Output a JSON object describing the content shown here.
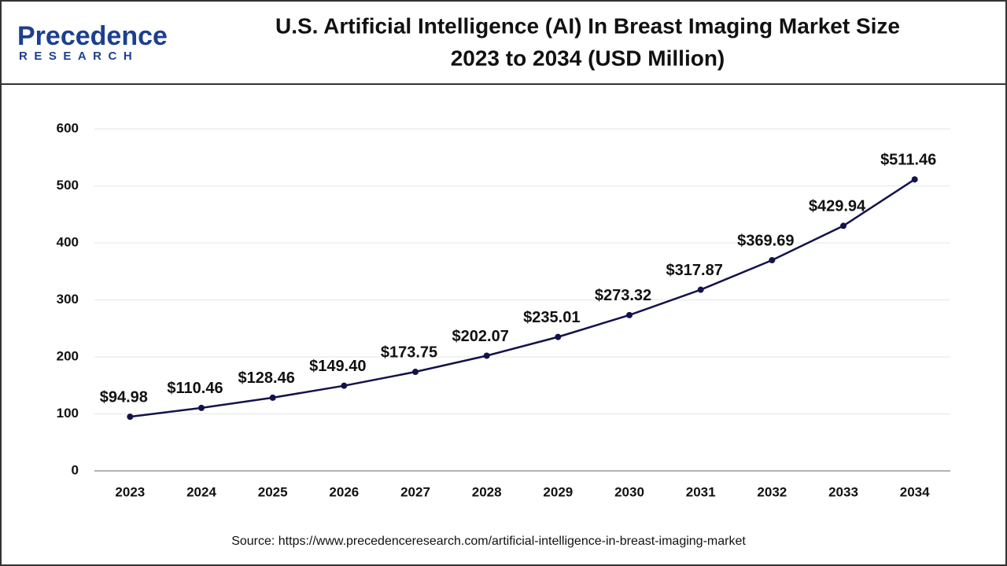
{
  "logo": {
    "name": "Precedence",
    "tagline": "RESEARCH"
  },
  "chart_data": {
    "type": "line",
    "title": [
      "U.S. Artificial Intelligence (AI) In Breast Imaging Market Size",
      "2023 to 2034 (USD Million)"
    ],
    "categories": [
      "2023",
      "2024",
      "2025",
      "2026",
      "2027",
      "2028",
      "2029",
      "2030",
      "2031",
      "2032",
      "2033",
      "2034"
    ],
    "values": [
      94.98,
      110.46,
      128.46,
      149.4,
      173.75,
      202.07,
      235.01,
      273.32,
      317.87,
      369.69,
      429.94,
      511.46
    ],
    "value_labels": [
      "$94.98",
      "$110.46",
      "$128.46",
      "$149.40",
      "$173.75",
      "$202.07",
      "$235.01",
      "$273.32",
      "$317.87",
      "$369.69",
      "$429.94",
      "$511.46"
    ],
    "color": "#14124a",
    "ylim": [
      0,
      600
    ],
    "yticks": [
      0,
      100,
      200,
      300,
      400,
      500,
      600
    ],
    "grid": true,
    "source": "Source: https://www.precedenceresearch.com/artificial-intelligence-in-breast-imaging-market"
  }
}
